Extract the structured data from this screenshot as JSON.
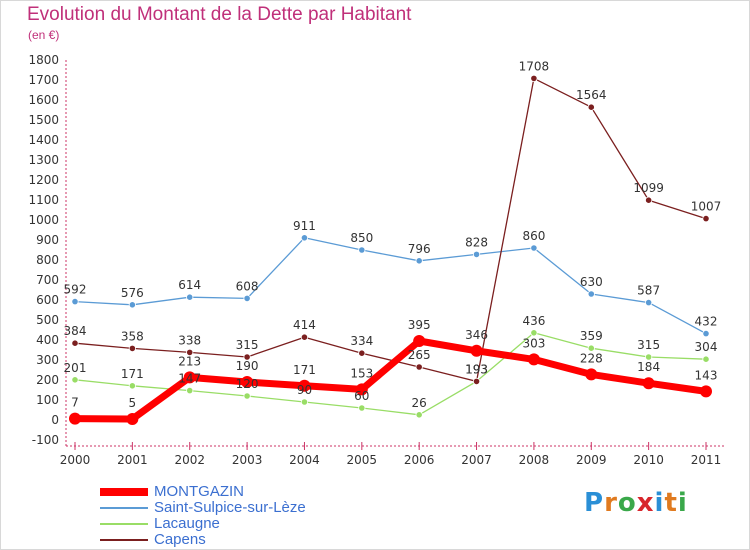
{
  "title": "Evolution du Montant de la Dette par Habitant",
  "unit": "(en €)",
  "brand": "Proxiti",
  "chart_data": {
    "type": "line",
    "x": [
      "2000",
      "2001",
      "2002",
      "2003",
      "2004",
      "2005",
      "2006",
      "2007",
      "2008",
      "2009",
      "2010",
      "2011"
    ],
    "yticks": [
      -100,
      0,
      100,
      200,
      300,
      400,
      500,
      600,
      700,
      800,
      900,
      1000,
      1100,
      1200,
      1300,
      1400,
      1500,
      1600,
      1700,
      1800
    ],
    "ylim": [
      -100,
      1800
    ],
    "grid": false,
    "legend_position": "bottom-left",
    "series": [
      {
        "name": "MONTGAZIN",
        "color": "#ff0000",
        "values": [
          7,
          5,
          213,
          190,
          171,
          153,
          395,
          346,
          303,
          228,
          184,
          143
        ]
      },
      {
        "name": "Saint-Sulpice-sur-Lèze",
        "color": "#5b9bd5",
        "values": [
          592,
          576,
          614,
          608,
          911,
          850,
          796,
          828,
          860,
          630,
          587,
          432
        ]
      },
      {
        "name": "Lacaugne",
        "color": "#99dd66",
        "values": [
          201,
          171,
          147,
          120,
          90,
          60,
          26,
          193,
          436,
          359,
          315,
          304
        ]
      },
      {
        "name": "Capens",
        "color": "#7b1f1f",
        "values": [
          384,
          358,
          338,
          315,
          414,
          334,
          265,
          193,
          1708,
          1564,
          1099,
          1007
        ]
      }
    ]
  }
}
